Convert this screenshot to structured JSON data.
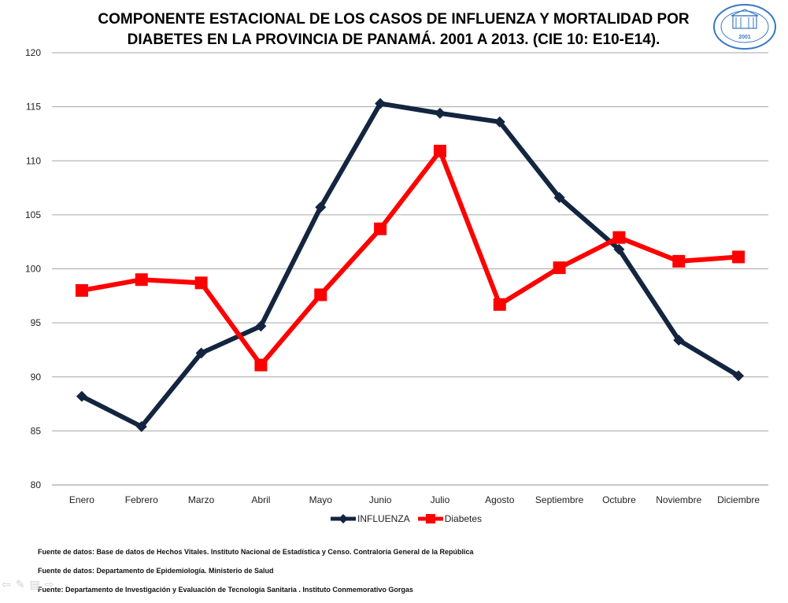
{
  "title": {
    "line1": "COMPONENTE ESTACIONAL DE LOS CASOS DE INFLUENZA Y MORTALIDAD POR",
    "line2": "DIABETES EN LA PROVINCIA DE PANAMÁ. 2001 A 2013. (CIE 10: E10-E14)."
  },
  "logo": {
    "year": "2001",
    "colors": {
      "ring": "#3a78c2"
    }
  },
  "chart_data": {
    "type": "line",
    "categories": [
      "Enero",
      "Febrero",
      "Marzo",
      "Abril",
      "Mayo",
      "Junio",
      "Julio",
      "Agosto",
      "Septiembre",
      "Octubre",
      "Noviembre",
      "Diciembre"
    ],
    "ylim": [
      80,
      120
    ],
    "yticks": [
      80,
      85,
      90,
      95,
      100,
      105,
      110,
      115,
      120
    ],
    "grid": true,
    "legend_position": "bottom",
    "series": [
      {
        "name": "INFLUENZA",
        "color": "#13253f",
        "marker": "diamond",
        "values": [
          88.2,
          85.4,
          92.2,
          94.7,
          105.7,
          115.3,
          114.4,
          113.6,
          106.6,
          101.8,
          93.4,
          90.1
        ]
      },
      {
        "name": "Diabetes",
        "color": "#ff0000",
        "marker": "square",
        "values": [
          98.0,
          99.0,
          98.7,
          91.1,
          97.6,
          103.7,
          110.9,
          96.7,
          100.1,
          102.9,
          100.7,
          101.1
        ]
      }
    ]
  },
  "sources": [
    "Fuente de datos:  Base  de datos  de Hechos Vitales. Instituto Nacional  de Estadística  y Censo. Contraloría  General de la República",
    "Fuente de datos:  Departamento de Epidemiología.  Ministerio  de Salud",
    "Fuente: Departamento  de  Investigación  y  Evaluación  de Tecnología Sanitaria  . Instituto  Conmemorativo Gorgas"
  ]
}
